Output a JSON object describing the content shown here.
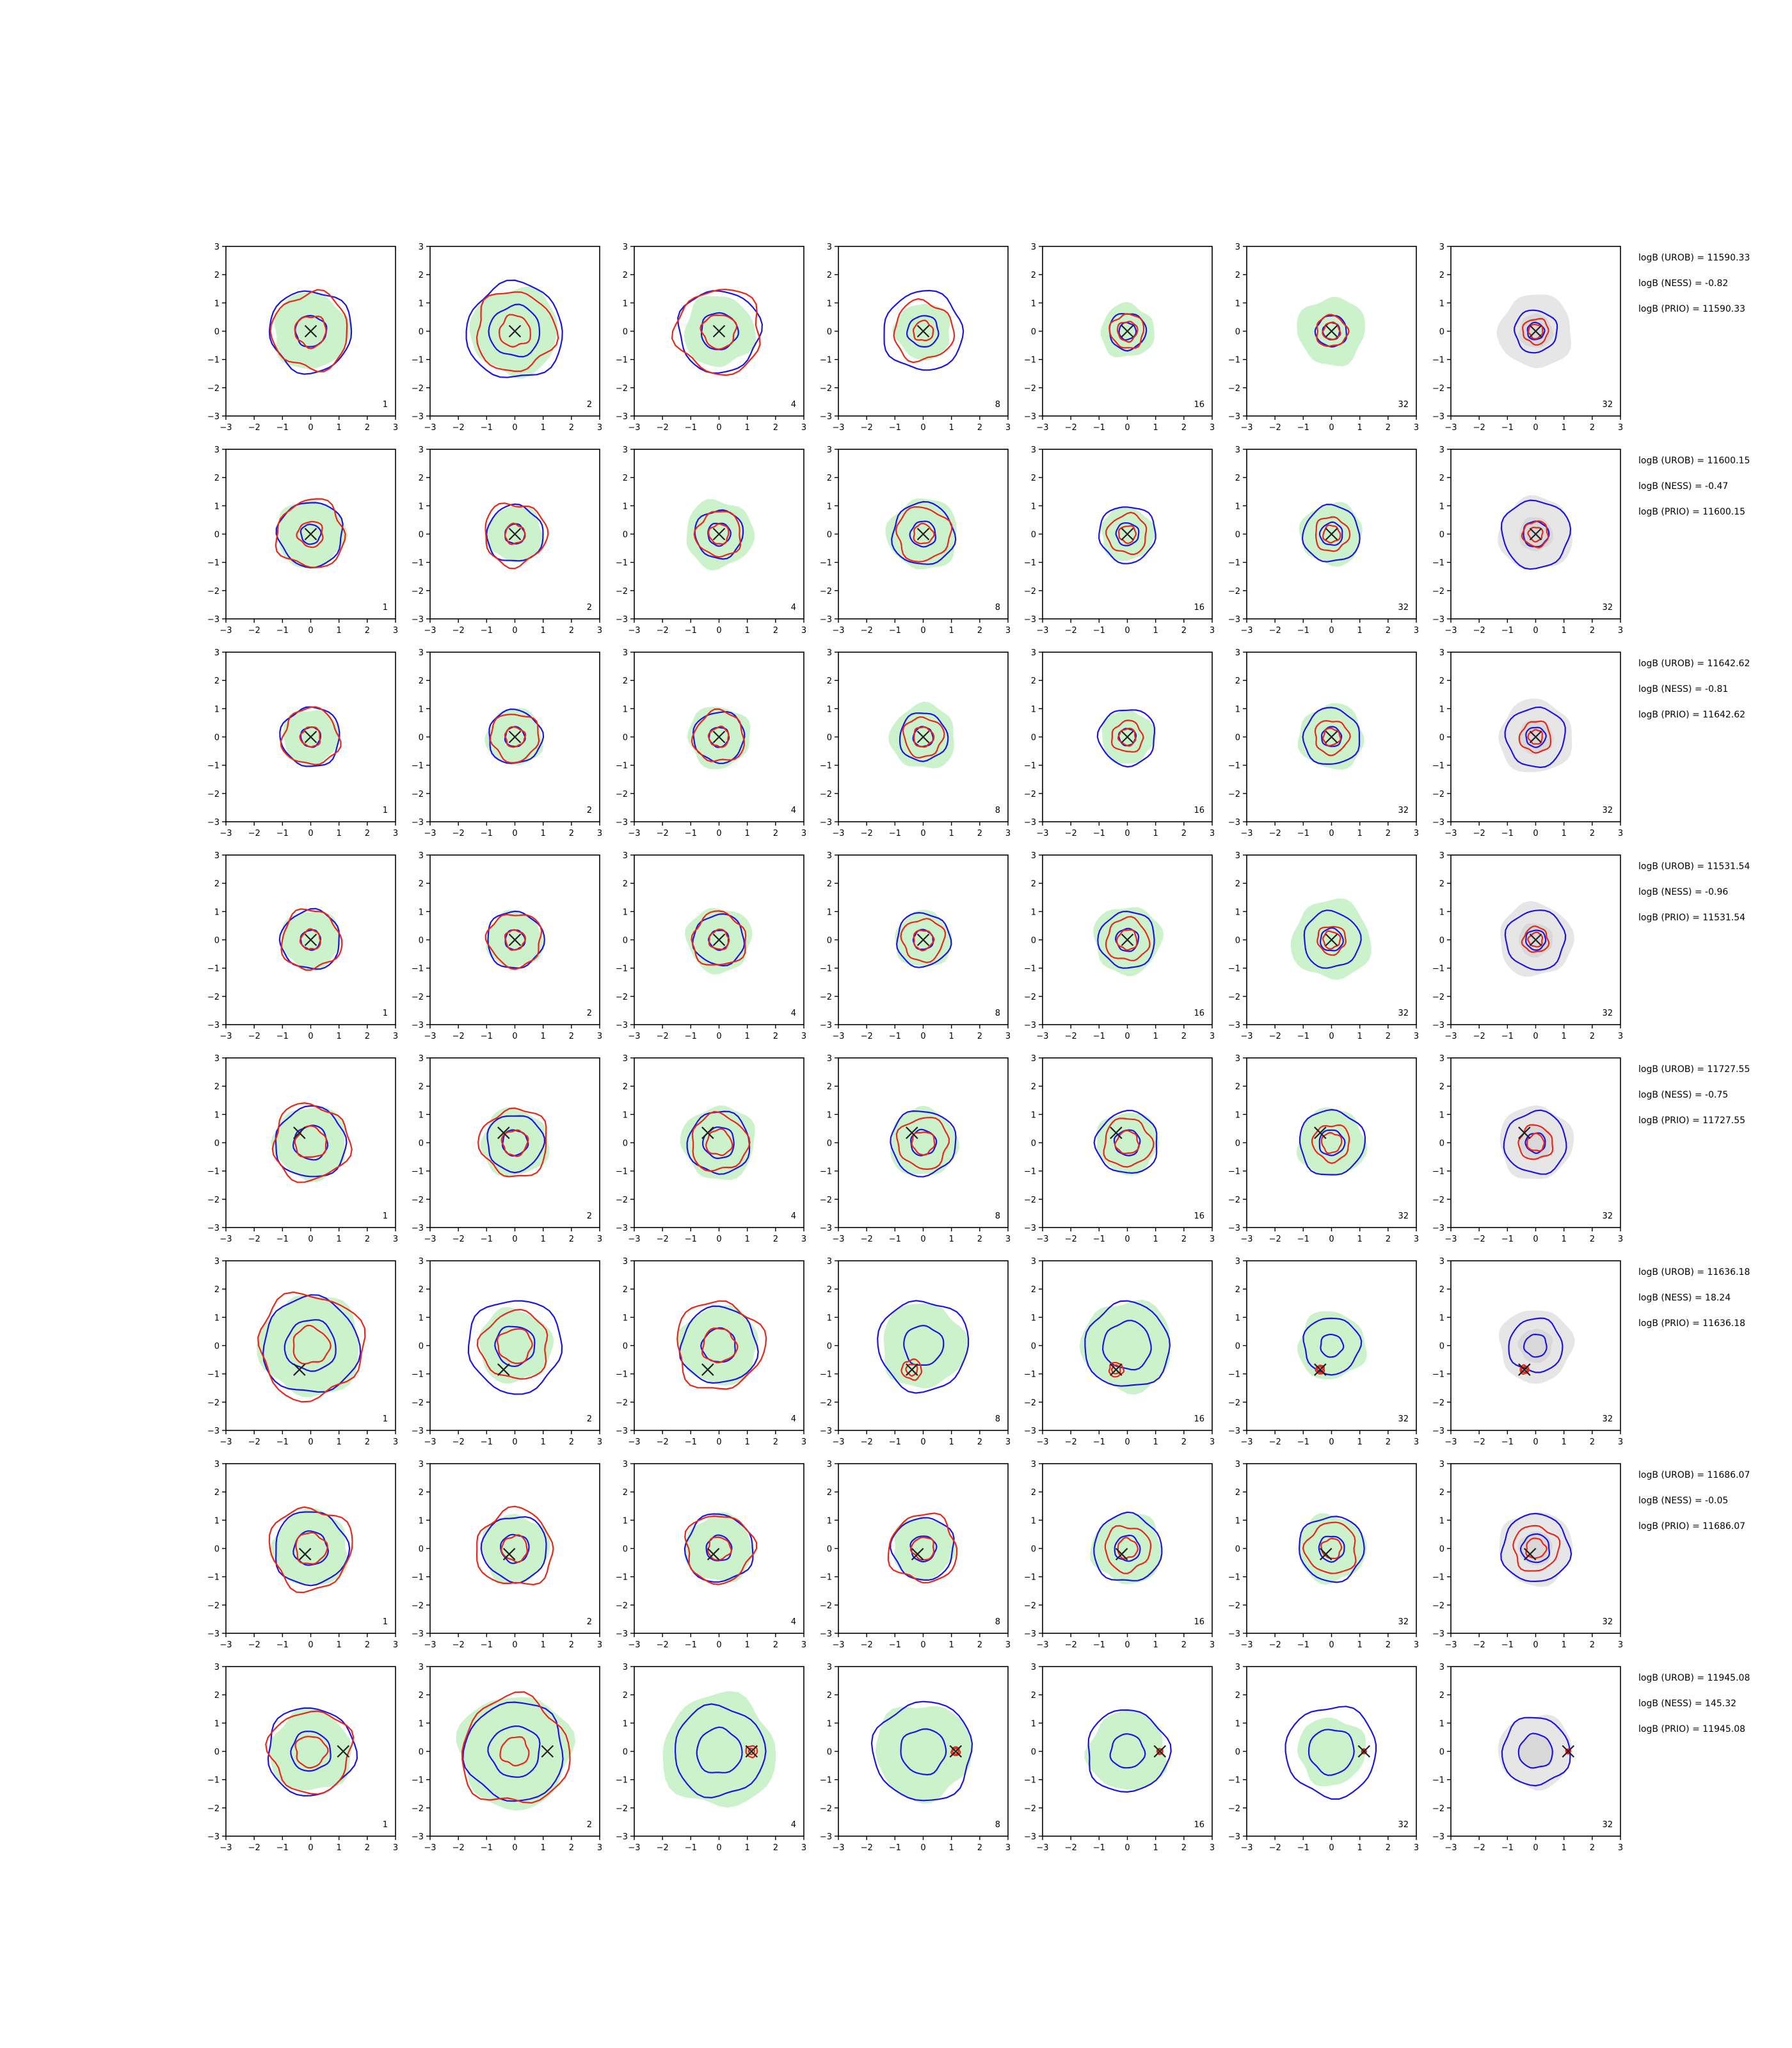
{
  "chart_data": {
    "type": "contour-grid",
    "xlim": [
      -3,
      3
    ],
    "ylim": [
      -3,
      3
    ],
    "ticks": [
      -3,
      -2,
      -1,
      0,
      1,
      2,
      3
    ],
    "tick_labels": [
      "−3",
      "−2",
      "−1",
      "0",
      "1",
      "2",
      "3"
    ],
    "grid": false,
    "colors": {
      "green_fill": "#ccf2cc",
      "grey_fill": "#c8c8c8",
      "red": "#e8261a",
      "blue": "#1c14e6",
      "marker": "#222222"
    },
    "column_labels": [
      "1",
      "2",
      "4",
      "8",
      "16",
      "32",
      "32"
    ],
    "rows": [
      {
        "marker": [
          0,
          0
        ],
        "stats": [
          "logB (UROB) = 11590.33",
          "logB (NESS) = -0.82",
          "logB (PRIO) = 11590.33"
        ],
        "panels": [
          {
            "green": [
              1.35
            ],
            "red": [
              0.55,
              1.35
            ],
            "blue": [
              0.55,
              1.45
            ]
          },
          {
            "green": [
              1.55
            ],
            "red": [
              0.55,
              1.4
            ],
            "blue": [
              0.9,
              1.7
            ]
          },
          {
            "green": [
              1.25
            ],
            "red": [
              0.6,
              1.5
            ],
            "blue": [
              0.65,
              1.45
            ]
          },
          {
            "green": [
              1.0
            ],
            "red": [
              0.35,
              1.05
            ],
            "blue": [
              0.55,
              1.4
            ]
          },
          {
            "green": [
              0.95
            ],
            "red": [
              0.35,
              0.6
            ],
            "blue": [
              0.3,
              0.65
            ]
          },
          {
            "green": [
              1.2
            ],
            "red": [
              0.3,
              0.55
            ],
            "blue": [
              0.3,
              0.55
            ]
          },
          {
            "green": [],
            "red": [
              0.25,
              0.45
            ],
            "blue": [
              0.3,
              0.75
            ]
          }
        ]
      },
      {
        "marker": [
          0,
          0
        ],
        "stats": [
          "logB (UROB) = 11600.15",
          "logB (NESS) = -0.47",
          "logB (PRIO) = 11600.15"
        ],
        "panels": [
          {
            "green": [
              1.2
            ],
            "red": [
              0.45,
              1.2
            ],
            "blue": [
              0.35,
              1.15
            ]
          },
          {
            "green": [
              1.0
            ],
            "red": [
              0.35,
              1.1
            ],
            "blue": [
              0.35,
              1.0
            ]
          },
          {
            "green": [
              1.2
            ],
            "red": [
              0.35,
              0.8
            ],
            "blue": [
              0.4,
              0.85
            ]
          },
          {
            "green": [
              1.25
            ],
            "red": [
              0.35,
              0.95
            ],
            "blue": [
              0.45,
              1.1
            ]
          },
          {
            "green": [
              0.95
            ],
            "red": [
              0.3,
              0.7
            ],
            "blue": [
              0.4,
              1.0
            ]
          },
          {
            "green": [
              1.1
            ],
            "red": [
              0.3,
              0.6
            ],
            "blue": [
              0.4,
              1.0
            ]
          },
          {
            "green": [],
            "red": [
              0.25,
              0.45
            ],
            "blue": [
              0.45,
              1.2
            ]
          }
        ]
      },
      {
        "marker": [
          0,
          0
        ],
        "stats": [
          "logB (UROB) = 11642.62",
          "logB (NESS) = -0.81",
          "logB (PRIO) = 11642.62"
        ],
        "panels": [
          {
            "green": [
              1.0
            ],
            "red": [
              0.35,
              1.0
            ],
            "blue": [
              0.35,
              1.05
            ]
          },
          {
            "green": [
              1.0
            ],
            "red": [
              0.35,
              0.85
            ],
            "blue": [
              0.35,
              0.95
            ]
          },
          {
            "green": [
              1.1
            ],
            "red": [
              0.35,
              0.9
            ],
            "blue": [
              0.35,
              0.9
            ]
          },
          {
            "green": [
              1.15
            ],
            "red": [
              0.35,
              0.7
            ],
            "blue": [
              0.35,
              0.85
            ]
          },
          {
            "green": [
              0.95
            ],
            "red": [
              0.3,
              0.55
            ],
            "blue": [
              0.3,
              1.0
            ]
          },
          {
            "green": [
              1.15
            ],
            "red": [
              0.3,
              0.6
            ],
            "blue": [
              0.35,
              1.0
            ]
          },
          {
            "green": [],
            "red": [
              0.25,
              0.55
            ],
            "blue": [
              0.35,
              1.05
            ]
          }
        ]
      },
      {
        "marker": [
          0,
          0
        ],
        "stats": [
          "logB (UROB) = 11531.54",
          "logB (NESS) = -0.96",
          "logB (PRIO) = 11531.54"
        ],
        "panels": [
          {
            "green": [
              1.05
            ],
            "red": [
              0.35,
              1.05
            ],
            "blue": [
              0.35,
              1.05
            ]
          },
          {
            "green": [
              1.0
            ],
            "red": [
              0.35,
              0.95
            ],
            "blue": [
              0.35,
              1.0
            ]
          },
          {
            "green": [
              1.15
            ],
            "red": [
              0.35,
              0.95
            ],
            "blue": [
              0.35,
              0.9
            ]
          },
          {
            "green": [
              1.0
            ],
            "red": [
              0.35,
              0.75
            ],
            "blue": [
              0.35,
              0.95
            ]
          },
          {
            "green": [
              1.2
            ],
            "red": [
              0.35,
              0.75
            ],
            "blue": [
              0.4,
              1.0
            ]
          },
          {
            "green": [
              1.4
            ],
            "red": [
              0.3,
              0.5
            ],
            "blue": [
              0.4,
              1.0
            ]
          },
          {
            "green": [],
            "red": [
              0.25,
              0.45
            ],
            "blue": [
              0.35,
              1.05
            ]
          }
        ]
      },
      {
        "marker": [
          -0.4,
          0.35
        ],
        "stats": [
          "logB (UROB) = 11727.55",
          "logB (NESS) = -0.75",
          "logB (PRIO) = 11727.55"
        ],
        "panels": [
          {
            "green": [
              1.3
            ],
            "red": [
              0.55,
              1.35
            ],
            "blue": [
              0.6,
              1.25
            ]
          },
          {
            "green": [
              1.2
            ],
            "red": [
              0.45,
              1.2
            ],
            "blue": [
              0.45,
              1.0
            ]
          },
          {
            "green": [
              1.3
            ],
            "red": [
              0.45,
              1.0
            ],
            "blue": [
              0.55,
              1.1
            ]
          },
          {
            "green": [
              1.2
            ],
            "red": [
              0.4,
              0.9
            ],
            "blue": [
              0.45,
              1.15
            ]
          },
          {
            "green": [
              1.1
            ],
            "red": [
              0.4,
              0.85
            ],
            "blue": [
              0.45,
              1.1
            ]
          },
          {
            "green": [
              1.2
            ],
            "red": [
              0.35,
              0.65
            ],
            "blue": [
              0.45,
              1.15
            ]
          },
          {
            "green": [],
            "red": [
              0.3,
              0.6
            ],
            "blue": [
              0.35,
              1.1
            ]
          }
        ]
      },
      {
        "marker": [
          -0.4,
          -0.85
        ],
        "stats": [
          "logB (UROB) = 11636.18",
          "logB (NESS) = 18.24",
          "logB (PRIO) = 11636.18"
        ],
        "panels": [
          {
            "green": [
              1.8
            ],
            "red": [
              0.65,
              1.85
            ],
            "blue": [
              0.9,
              1.7
            ]
          },
          {
            "green": [
              1.3
            ],
            "red": [
              0.6,
              1.2
            ],
            "blue": [
              0.7,
              1.65
            ]
          },
          {
            "green": [
              1.4
            ],
            "red": [
              0.6,
              1.55
            ],
            "blue": [
              0.6,
              1.35
            ]
          },
          {
            "green": [
              1.5
            ],
            "red": [
              0.2,
              0.35
            ],
            "blue": [
              0.7,
              1.6
            ]
          },
          {
            "green": [
              1.6
            ],
            "red": [
              0.15,
              0.25
            ],
            "blue": [
              0.85,
              1.5
            ]
          },
          {
            "green": [
              1.2
            ],
            "red": [
              0.1,
              0.15
            ],
            "blue": [
              0.4,
              1.0
            ]
          },
          {
            "green": [],
            "red": [
              0.1,
              0.15
            ],
            "blue": [
              0.4,
              0.95
            ]
          }
        ]
      },
      {
        "marker": [
          -0.2,
          -0.2
        ],
        "stats": [
          "logB (UROB) = 11686.07",
          "logB (NESS) = -0.05",
          "logB (PRIO) = 11686.07"
        ],
        "panels": [
          {
            "green": [
              1.35
            ],
            "red": [
              0.55,
              1.45
            ],
            "blue": [
              0.6,
              1.3
            ]
          },
          {
            "green": [
              1.2
            ],
            "red": [
              0.45,
              1.35
            ],
            "blue": [
              0.5,
              1.15
            ]
          },
          {
            "green": [
              1.2
            ],
            "red": [
              0.4,
              1.2
            ],
            "blue": [
              0.45,
              1.2
            ]
          },
          {
            "green": [
              1.1
            ],
            "red": [
              0.4,
              1.2
            ],
            "blue": [
              0.45,
              1.1
            ]
          },
          {
            "green": [
              1.25
            ],
            "red": [
              0.35,
              0.8
            ],
            "blue": [
              0.45,
              1.2
            ]
          },
          {
            "green": [
              1.2
            ],
            "red": [
              0.35,
              0.9
            ],
            "blue": [
              0.45,
              1.15
            ]
          },
          {
            "green": [],
            "red": [
              0.35,
              0.8
            ],
            "blue": [
              0.5,
              1.2
            ]
          }
        ]
      },
      {
        "marker": [
          1.15,
          0.0
        ],
        "stats": [
          "logB (UROB) = 11945.08",
          "logB (NESS) = 145.32",
          "logB (PRIO) = 11945.08"
        ],
        "panels": [
          {
            "green": [
              1.45
            ],
            "red": [
              0.55,
              1.45
            ],
            "blue": [
              0.7,
              1.55
            ]
          },
          {
            "green": [
              2.0
            ],
            "red": [
              0.5,
              1.9
            ],
            "blue": [
              0.9,
              1.75
            ]
          },
          {
            "green": [
              2.0
            ],
            "red": [
              0.1,
              0.2
            ],
            "blue": [
              0.8,
              1.6
            ]
          },
          {
            "green": [
              1.7
            ],
            "red": [
              0.1,
              0.15
            ],
            "blue": [
              0.8,
              1.75
            ]
          },
          {
            "green": [
              1.4
            ],
            "red": [
              0.08,
              0.1
            ],
            "blue": [
              0.6,
              1.45
            ]
          },
          {
            "green": [
              1.2
            ],
            "red": [
              0.05,
              0.08
            ],
            "blue": [
              0.8,
              1.6
            ]
          },
          {
            "green": [],
            "red": [
              0.05,
              0.08
            ],
            "blue": [
              0.6,
              1.2
            ]
          }
        ]
      }
    ]
  }
}
